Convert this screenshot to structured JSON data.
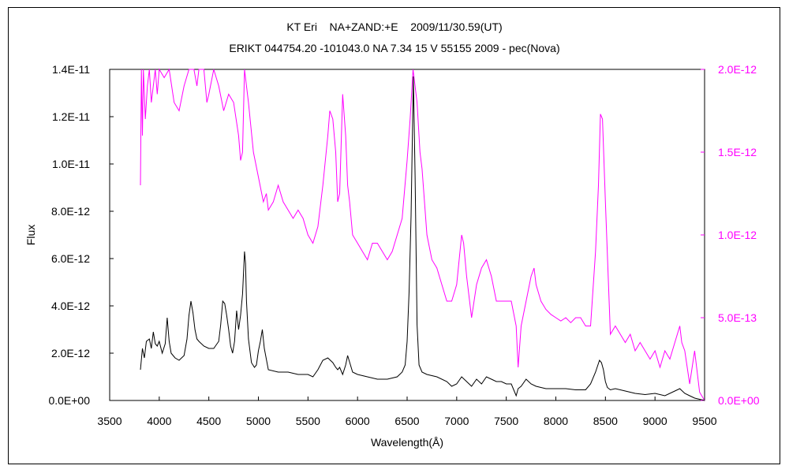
{
  "chart_data": {
    "type": "line",
    "title": "KT Eri    NA+ZAND:+E    2009/11/30.59(UT)",
    "subtitle": "ERIKT 044754.20 -101043.0 NA 7.34 15 V 55155 2009 - pec(Nova)",
    "xlabel": "Wavelength(Å)",
    "ylabel": "Flux",
    "xlim": [
      3500,
      9500
    ],
    "ylim": [
      0,
      1.4e-11
    ],
    "y2lim": [
      0,
      2e-12
    ],
    "x_ticks": [
      "3500",
      "4000",
      "4500",
      "5000",
      "5500",
      "6000",
      "6500",
      "7000",
      "7500",
      "8000",
      "8500",
      "9000",
      "9500"
    ],
    "y_ticks": [
      "0.0E+00",
      "2.0E-12",
      "4.0E-12",
      "6.0E-12",
      "8.0E-12",
      "1.0E-11",
      "1.2E-11",
      "1.4E-11"
    ],
    "y2_ticks": [
      "0.0E+00",
      "5.0E-13",
      "1.0E-12",
      "1.5E-12",
      "2.0E-12"
    ],
    "grid": false,
    "series": [
      {
        "axis": "left",
        "color": "#000000",
        "x": [
          3810,
          3830,
          3850,
          3870,
          3900,
          3920,
          3940,
          3960,
          3980,
          4000,
          4030,
          4060,
          4080,
          4100,
          4120,
          4140,
          4160,
          4200,
          4250,
          4280,
          4300,
          4320,
          4340,
          4360,
          4380,
          4400,
          4450,
          4500,
          4550,
          4600,
          4620,
          4640,
          4660,
          4680,
          4700,
          4720,
          4740,
          4760,
          4780,
          4800,
          4820,
          4840,
          4860,
          4870,
          4880,
          4900,
          4930,
          4960,
          4980,
          5000,
          5020,
          5040,
          5060,
          5100,
          5200,
          5300,
          5400,
          5500,
          5550,
          5600,
          5650,
          5700,
          5750,
          5780,
          5800,
          5820,
          5850,
          5880,
          5900,
          5950,
          6000,
          6100,
          6200,
          6300,
          6400,
          6450,
          6480,
          6500,
          6520,
          6540,
          6563,
          6580,
          6600,
          6620,
          6650,
          6700,
          6800,
          6900,
          6950,
          7000,
          7050,
          7100,
          7150,
          7200,
          7250,
          7300,
          7350,
          7400,
          7450,
          7500,
          7550,
          7600,
          7620,
          7650,
          7700,
          7750,
          7800,
          7850,
          7900,
          8000,
          8100,
          8200,
          8300,
          8350,
          8400,
          8440,
          8460,
          8480,
          8500,
          8520,
          8550,
          8600,
          8700,
          8800,
          8900,
          9000,
          9100,
          9200,
          9250,
          9300,
          9350,
          9400,
          9450,
          9500
        ],
        "y": [
          1.3e-12,
          2.2e-12,
          1.8e-12,
          2.5e-12,
          2.6e-12,
          2.2e-12,
          2.9e-12,
          2.4e-12,
          2.3e-12,
          2.5e-12,
          2e-12,
          2.4e-12,
          3.5e-12,
          2.5e-12,
          2e-12,
          1.9e-12,
          1.8e-12,
          1.7e-12,
          1.9e-12,
          2.6e-12,
          3.6e-12,
          4.2e-12,
          3.7e-12,
          3e-12,
          2.6e-12,
          2.5e-12,
          2.3e-12,
          2.2e-12,
          2.2e-12,
          2.5e-12,
          3.2e-12,
          4.2e-12,
          4.1e-12,
          3.6e-12,
          3e-12,
          2.3e-12,
          2e-12,
          2.5e-12,
          3.8e-12,
          3e-12,
          3.6e-12,
          4.5e-12,
          6.3e-12,
          5.8e-12,
          4.2e-12,
          2.6e-12,
          1.6e-12,
          1.4e-12,
          1.5e-12,
          2.1e-12,
          2.5e-12,
          3e-12,
          2.2e-12,
          1.3e-12,
          1.2e-12,
          1.2e-12,
          1.1e-12,
          1.1e-12,
          1e-12,
          1.3e-12,
          1.7e-12,
          1.8e-12,
          1.6e-12,
          1.4e-12,
          1.3e-12,
          1.4e-12,
          1.1e-12,
          1.5e-12,
          1.9e-12,
          1.2e-12,
          1.1e-12,
          1e-12,
          9e-13,
          9e-13,
          1e-12,
          1.2e-12,
          1.5e-12,
          2.5e-12,
          4.6e-12,
          7.8e-12,
          1.37e-11,
          9.5e-12,
          3.2e-12,
          1.5e-12,
          1.2e-12,
          1.1e-12,
          1e-12,
          8e-13,
          6e-13,
          7e-13,
          1e-12,
          8e-13,
          6e-13,
          9e-13,
          7e-13,
          1e-12,
          9e-13,
          8e-13,
          8e-13,
          7e-13,
          7e-13,
          2e-13,
          5e-13,
          6e-13,
          9e-13,
          7e-13,
          6e-13,
          5.5e-13,
          5e-13,
          5e-13,
          5e-13,
          4.5e-13,
          4.5e-13,
          7e-13,
          1.2e-12,
          1.7e-12,
          1.6e-12,
          1.3e-12,
          8e-13,
          5.5e-13,
          4.5e-13,
          5e-13,
          4e-13,
          3e-13,
          2.5e-13,
          3e-13,
          2e-13,
          4e-13,
          5e-13,
          3e-13,
          2e-13,
          1e-13,
          5e-14,
          0.0
        ]
      },
      {
        "axis": "right",
        "color": "#ff00ff",
        "x": [
          3810,
          3820,
          3830,
          3840,
          3860,
          3880,
          3900,
          3920,
          3940,
          3960,
          3980,
          4000,
          4050,
          4100,
          4150,
          4200,
          4250,
          4300,
          4350,
          4380,
          4400,
          4450,
          4480,
          4500,
          4550,
          4600,
          4650,
          4700,
          4750,
          4800,
          4820,
          4840,
          4860,
          4880,
          4900,
          4950,
          5000,
          5050,
          5080,
          5100,
          5150,
          5200,
          5250,
          5300,
          5350,
          5400,
          5450,
          5500,
          5550,
          5600,
          5650,
          5700,
          5720,
          5750,
          5780,
          5800,
          5820,
          5850,
          5880,
          5900,
          5920,
          5950,
          6000,
          6050,
          6100,
          6150,
          6200,
          6250,
          6300,
          6350,
          6400,
          6450,
          6500,
          6530,
          6560,
          6600,
          6630,
          6650,
          6700,
          6750,
          6800,
          6850,
          6900,
          6950,
          7000,
          7050,
          7070,
          7100,
          7150,
          7200,
          7250,
          7300,
          7350,
          7400,
          7450,
          7500,
          7550,
          7600,
          7620,
          7650,
          7700,
          7750,
          7780,
          7800,
          7850,
          7900,
          7950,
          8000,
          8050,
          8100,
          8150,
          8200,
          8250,
          8300,
          8350,
          8400,
          8430,
          8450,
          8470,
          8500,
          8550,
          8600,
          8650,
          8700,
          8750,
          8800,
          8850,
          8900,
          8950,
          9000,
          9050,
          9100,
          9150,
          9200,
          9250,
          9270,
          9300,
          9350,
          9400,
          9450,
          9500
        ],
        "y": [
          1.3e-12,
          2e-12,
          1.6e-12,
          2e-12,
          1.7e-12,
          1.9e-12,
          2e-12,
          1.8e-12,
          1.9e-12,
          2e-12,
          1.85e-12,
          2e-12,
          1.95e-12,
          2e-12,
          1.8e-12,
          1.75e-12,
          1.9e-12,
          2e-12,
          2e-12,
          1.9e-12,
          2e-12,
          2e-12,
          1.8e-12,
          1.85e-12,
          2e-12,
          1.9e-12,
          1.75e-12,
          1.85e-12,
          1.8e-12,
          1.6e-12,
          1.45e-12,
          1.5e-12,
          2e-12,
          1.9e-12,
          1.8e-12,
          1.5e-12,
          1.35e-12,
          1.2e-12,
          1.25e-12,
          1.15e-12,
          1.2e-12,
          1.3e-12,
          1.2e-12,
          1.15e-12,
          1.1e-12,
          1.15e-12,
          1.1e-12,
          1e-12,
          9.5e-13,
          1.05e-12,
          1.3e-12,
          1.6e-12,
          1.75e-12,
          1.7e-12,
          1.5e-12,
          1.2e-12,
          1.25e-12,
          1.85e-12,
          1.6e-12,
          1.3e-12,
          1.2e-12,
          1e-12,
          9.5e-13,
          9e-13,
          8.5e-13,
          9.5e-13,
          9.5e-13,
          9e-13,
          8.5e-13,
          9e-13,
          1e-12,
          1.1e-12,
          1.45e-12,
          1.7e-12,
          2e-12,
          1.8e-12,
          1.5e-12,
          1.4e-12,
          1e-12,
          8.5e-13,
          8e-13,
          7e-13,
          6e-13,
          6e-13,
          7e-13,
          1e-12,
          9.5e-13,
          7.5e-13,
          5e-13,
          7e-13,
          8e-13,
          8.5e-13,
          7.5e-13,
          6e-13,
          6e-13,
          6e-13,
          6e-13,
          4.5e-13,
          2e-13,
          4.5e-13,
          6e-13,
          7.5e-13,
          8e-13,
          7e-13,
          6e-13,
          5.5e-13,
          5.2e-13,
          5e-13,
          4.8e-13,
          5e-13,
          4.7e-13,
          5e-13,
          5e-13,
          4.5e-13,
          4.5e-13,
          9e-13,
          1.3e-12,
          1.73e-12,
          1.7e-12,
          1.2e-12,
          4e-13,
          4.5e-13,
          4e-13,
          3.5e-13,
          4e-13,
          3e-13,
          3.5e-13,
          3e-13,
          2.5e-13,
          3e-13,
          2e-13,
          3e-13,
          2.5e-13,
          3.5e-13,
          4.5e-13,
          3.5e-13,
          3e-13,
          1e-13,
          3e-13,
          5e-14,
          0.0
        ]
      }
    ]
  }
}
